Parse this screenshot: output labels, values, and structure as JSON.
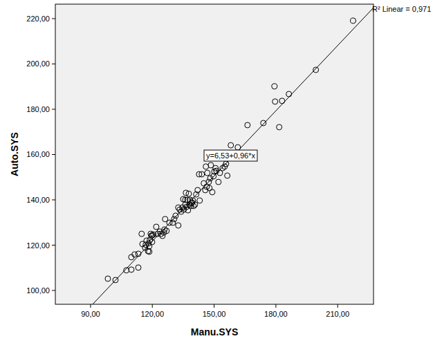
{
  "chart_data": {
    "type": "scatter",
    "x_label": "Manu.SYS",
    "y_label": "Auto.SYS",
    "marker": "circle",
    "color": "#000000",
    "xlim": [
      72.9,
      227.4
    ],
    "ylim": [
      93.9,
      226.4
    ],
    "xticks": [
      {
        "value": 90,
        "label": "90,00"
      },
      {
        "value": 120,
        "label": "120,00"
      },
      {
        "value": 150,
        "label": "150,00"
      },
      {
        "value": 180,
        "label": "180,00"
      },
      {
        "value": 210,
        "label": "210,00"
      }
    ],
    "yticks": [
      {
        "value": 100,
        "label": "100,00"
      },
      {
        "value": 120,
        "label": "120,00"
      },
      {
        "value": 140,
        "label": "140,00"
      },
      {
        "value": 160,
        "label": "160,00"
      },
      {
        "value": 180,
        "label": "180,00"
      },
      {
        "value": 200,
        "label": "200,00"
      },
      {
        "value": 220,
        "label": "220,00"
      }
    ],
    "grid": false,
    "fit": {
      "intercept": 6.53,
      "slope": 0.96,
      "label": "y=6,53+0,96*x",
      "r2_label": "R² Linear = 0,971"
    },
    "x": [
      98.4,
      102.1,
      107.4,
      109.8,
      109.8,
      111.4,
      113.2,
      113.2,
      114.8,
      115.2,
      116.5,
      116.8,
      117.2,
      117.9,
      118.2,
      118.5,
      118.5,
      118.8,
      119.2,
      119.5,
      119.9,
      119.9,
      120.5,
      121.9,
      122.6,
      123.6,
      124.2,
      124.9,
      125.6,
      125.9,
      126.2,
      126.9,
      128.3,
      129.9,
      130.6,
      131.3,
      132.6,
      132.6,
      133.3,
      134.0,
      134.6,
      135.0,
      135.3,
      136.0,
      136.0,
      136.3,
      136.6,
      137.0,
      137.3,
      137.7,
      138.0,
      138.3,
      138.7,
      139.0,
      139.3,
      139.7,
      140.0,
      140.7,
      141.3,
      142.0,
      142.7,
      143.0,
      144.0,
      145.0,
      145.7,
      146.0,
      146.4,
      146.7,
      147.4,
      147.7,
      148.1,
      148.4,
      149.1,
      149.7,
      150.1,
      150.7,
      151.1,
      152.1,
      152.8,
      154.1,
      155.1,
      155.8,
      156.4,
      158.1,
      161.5,
      166.2,
      173.9,
      179.3,
      179.6,
      181.6,
      183.0,
      186.3,
      199.4,
      217.5
    ],
    "values": [
      105.2,
      104.6,
      108.9,
      109.2,
      114.7,
      115.9,
      110.1,
      116.2,
      125.0,
      120.5,
      118.9,
      120.2,
      122.0,
      117.4,
      120.8,
      117.1,
      119.5,
      122.3,
      125.0,
      124.1,
      124.4,
      121.4,
      124.7,
      128.1,
      125.0,
      126.0,
      125.0,
      124.1,
      125.6,
      126.9,
      131.5,
      126.3,
      129.9,
      129.9,
      131.5,
      133.0,
      128.7,
      136.6,
      135.7,
      134.8,
      136.6,
      140.3,
      135.7,
      140.0,
      137.9,
      143.1,
      136.9,
      140.0,
      135.4,
      142.7,
      137.9,
      140.0,
      137.3,
      138.5,
      138.8,
      139.7,
      137.3,
      137.9,
      142.4,
      144.3,
      151.3,
      139.7,
      151.3,
      147.3,
      144.3,
      154.7,
      145.8,
      151.9,
      147.9,
      145.2,
      149.5,
      155.3,
      143.4,
      150.4,
      152.5,
      154.0,
      152.8,
      147.9,
      151.9,
      154.0,
      154.7,
      155.9,
      150.7,
      164.1,
      163.2,
      173.0,
      173.9,
      190.1,
      183.4,
      172.1,
      183.7,
      186.7,
      197.4,
      219.1
    ]
  }
}
